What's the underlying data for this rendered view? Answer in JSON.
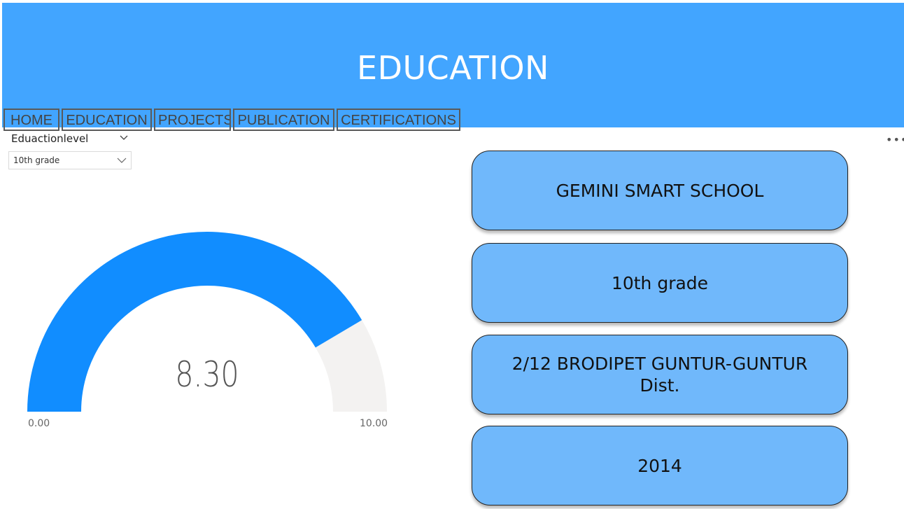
{
  "header": {
    "title": "EDUCATION",
    "nav": [
      "HOME",
      "EDUCATION",
      "PROJECTS",
      "PUBLICATION",
      "CERTIFICATIONS"
    ]
  },
  "slicer": {
    "title": "Eduactionlevel",
    "selected": "10th grade"
  },
  "gauge": {
    "value": "8.30",
    "min": "0.00",
    "max": "10.00",
    "fill_fraction": 0.83,
    "fill_color": "#118dff",
    "track_color": "#f3f2f1"
  },
  "cards": [
    {
      "text": "GEMINI SMART SCHOOL"
    },
    {
      "text": "10th grade"
    },
    {
      "text": "2/12 BRODIPET GUNTUR-GUNTUR Dist."
    },
    {
      "text": "2014"
    }
  ],
  "colors": {
    "header_bg": "#42a5ff",
    "card_bg": "#70b8fb"
  },
  "icons": {
    "more": "more-options-icon",
    "chevron": "chevron-down-icon"
  }
}
